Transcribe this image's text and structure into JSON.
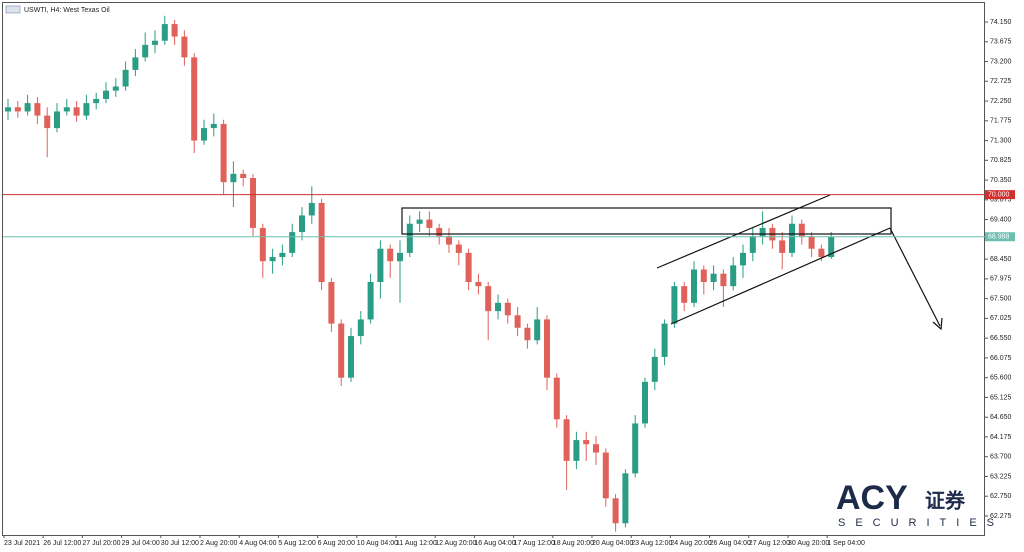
{
  "chart_data": {
    "type": "candlestick",
    "title": "USWTI, H4:  West Texas Oil",
    "categories": [
      "23 Jul 2021",
      null,
      null,
      null,
      "26 Jul 12:00",
      null,
      null,
      null,
      "27 Jul 20:00",
      null,
      null,
      null,
      "29 Jul 04:00",
      null,
      null,
      null,
      "30 Jul 12:00",
      null,
      null,
      null,
      "2 Aug 20:00",
      null,
      null,
      null,
      "4 Aug 04:00",
      null,
      null,
      null,
      "5 Aug 12:00",
      null,
      null,
      null,
      "6 Aug 20:00",
      null,
      null,
      null,
      "10 Aug 04:00",
      null,
      null,
      null,
      "11 Aug 12:00",
      null,
      null,
      null,
      "12 Aug 20:00",
      null,
      null,
      null,
      "16 Aug 04:00",
      null,
      null,
      null,
      "17 Aug 12:00",
      null,
      null,
      null,
      "18 Aug 20:00",
      null,
      null,
      null,
      "20 Aug 04:00",
      null,
      null,
      null,
      "23 Aug 12:00",
      null,
      null,
      null,
      "24 Aug 20:00",
      null,
      null,
      null,
      "26 Aug 04:00",
      null,
      null,
      null,
      "27 Aug 12:00",
      null,
      null,
      null,
      "30 Aug 20:00",
      null,
      null,
      null,
      "1 Sep 04:00"
    ],
    "open": [
      72.0,
      72.1,
      72.0,
      72.2,
      71.9,
      71.6,
      72.0,
      72.1,
      71.9,
      72.2,
      72.3,
      72.5,
      72.6,
      73.0,
      73.3,
      73.6,
      73.7,
      74.1,
      73.8,
      73.3,
      71.3,
      71.6,
      71.7,
      70.3,
      70.5,
      70.4,
      69.2,
      68.4,
      68.5,
      68.6,
      69.1,
      69.5,
      69.8,
      67.9,
      66.9,
      65.6,
      66.6,
      67.0,
      67.9,
      68.7,
      68.4,
      68.6,
      69.3,
      69.4,
      69.2,
      69.0,
      68.8,
      68.6,
      67.9,
      67.8,
      67.2,
      67.4,
      67.1,
      66.8,
      66.5,
      67.0,
      65.6,
      64.6,
      63.6,
      64.1,
      64.0,
      63.8,
      62.7,
      62.1,
      63.3,
      64.5,
      65.5,
      66.1,
      66.9,
      67.8,
      67.4,
      68.2,
      67.9,
      68.1,
      67.8,
      68.3,
      68.6,
      69.0,
      69.2,
      68.9,
      68.6,
      69.3,
      69.0,
      68.7,
      68.5
    ],
    "high": [
      72.3,
      72.25,
      72.4,
      72.35,
      72.1,
      72.2,
      72.3,
      72.25,
      72.4,
      72.45,
      72.7,
      72.8,
      73.2,
      73.5,
      73.9,
      73.95,
      74.3,
      74.2,
      73.95,
      73.4,
      71.8,
      71.95,
      71.8,
      70.8,
      70.6,
      70.5,
      69.3,
      68.7,
      68.8,
      69.3,
      69.7,
      70.2,
      69.9,
      68.0,
      67.0,
      66.8,
      67.2,
      68.1,
      68.9,
      68.8,
      68.9,
      69.5,
      69.6,
      69.6,
      69.3,
      69.2,
      68.9,
      68.7,
      68.1,
      67.9,
      67.6,
      67.5,
      67.3,
      66.9,
      67.3,
      67.1,
      65.7,
      64.7,
      64.3,
      64.3,
      64.2,
      63.9,
      62.8,
      63.4,
      64.7,
      65.6,
      66.3,
      67.0,
      67.9,
      67.9,
      68.4,
      68.3,
      68.3,
      68.2,
      68.5,
      68.8,
      69.2,
      69.6,
      69.3,
      69.1,
      69.5,
      69.4,
      69.1,
      68.8,
      69.1
    ],
    "low": [
      71.8,
      71.85,
      71.9,
      71.7,
      70.9,
      71.5,
      71.9,
      71.75,
      71.8,
      72.05,
      72.2,
      72.35,
      72.5,
      72.85,
      73.2,
      73.4,
      73.6,
      73.6,
      73.1,
      71.0,
      71.2,
      71.4,
      70.0,
      69.7,
      70.2,
      69.0,
      68.0,
      68.1,
      68.3,
      68.5,
      68.9,
      69.3,
      67.7,
      66.7,
      65.4,
      65.5,
      66.4,
      66.9,
      67.5,
      68.0,
      67.4,
      68.5,
      69.1,
      69.0,
      68.8,
      68.6,
      68.3,
      67.7,
      67.6,
      66.5,
      67.0,
      66.9,
      66.6,
      66.3,
      66.4,
      65.3,
      64.4,
      62.9,
      63.4,
      63.6,
      63.5,
      62.5,
      61.9,
      62.0,
      63.2,
      64.4,
      65.3,
      65.9,
      66.8,
      67.2,
      67.3,
      67.6,
      67.7,
      67.3,
      67.7,
      68.0,
      68.4,
      68.8,
      68.7,
      68.2,
      68.5,
      68.8,
      68.5,
      68.4,
      68.45
    ],
    "close": [
      72.1,
      72.0,
      72.2,
      71.9,
      71.6,
      72.0,
      72.1,
      71.9,
      72.2,
      72.3,
      72.5,
      72.6,
      73.0,
      73.3,
      73.6,
      73.7,
      74.1,
      73.8,
      73.3,
      71.3,
      71.6,
      71.7,
      70.3,
      70.5,
      70.4,
      69.2,
      68.4,
      68.5,
      68.6,
      69.1,
      69.5,
      69.8,
      67.9,
      66.9,
      65.6,
      66.6,
      67.0,
      67.9,
      68.7,
      68.4,
      68.6,
      69.3,
      69.4,
      69.2,
      69.0,
      68.8,
      68.6,
      67.9,
      67.8,
      67.2,
      67.4,
      67.1,
      66.8,
      66.5,
      67.0,
      65.6,
      64.6,
      63.6,
      64.1,
      64.0,
      63.8,
      62.7,
      62.1,
      63.3,
      64.5,
      65.5,
      66.1,
      66.9,
      67.8,
      67.4,
      68.2,
      67.9,
      68.1,
      67.8,
      68.3,
      68.6,
      69.0,
      69.2,
      68.9,
      68.6,
      69.3,
      69.0,
      68.7,
      68.5,
      68.988
    ],
    "up_color": "#2a9d84",
    "down_color": "#e0605a",
    "ylim": [
      61.818,
      74.679
    ],
    "yticks": [
      {
        "value": 74.15,
        "label": "74.150"
      },
      73.675,
      {
        "value": 73.2,
        "label": "73.200"
      },
      72.725,
      {
        "value": 72.25,
        "label": "72.250"
      },
      71.775,
      {
        "value": 71.3,
        "label": "71.300"
      },
      70.825,
      {
        "value": 70.35,
        "label": "70.350"
      },
      69.875,
      {
        "value": 69.4,
        "label": "69.400"
      },
      {
        "value": 68.45,
        "label": "68.450"
      },
      67.975,
      {
        "value": 67.5,
        "label": "67.500"
      },
      67.025,
      {
        "value": 66.55,
        "label": "66.550"
      },
      66.075,
      {
        "value": 65.6,
        "label": "65.600"
      },
      65.125,
      {
        "value": 64.65,
        "label": "64.650"
      },
      64.175,
      {
        "value": 63.7,
        "label": "63.700"
      },
      63.225,
      {
        "value": 62.75,
        "label": "62.750"
      },
      62.275
    ],
    "levels": [
      {
        "value": 70,
        "label": "70.000",
        "color": "#d32f2f"
      },
      {
        "value": 68.988,
        "label": "68.988",
        "color": "#6cbfb0"
      }
    ]
  },
  "logo": {
    "brand": "ACY",
    "chinese": "证券",
    "sub": "SECURITIES"
  }
}
